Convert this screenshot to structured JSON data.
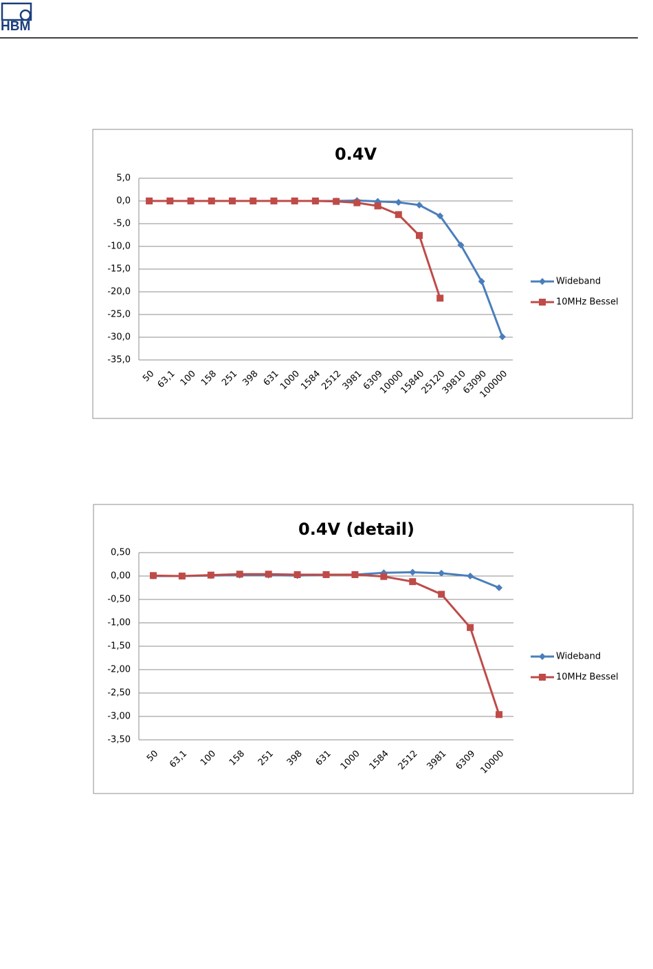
{
  "header": {
    "logo": "HBM"
  },
  "chart_data": [
    {
      "type": "line",
      "title": "0.4V",
      "categories": [
        "50",
        "63,1",
        "100",
        "158",
        "251",
        "398",
        "631",
        "1000",
        "1584",
        "2512",
        "3981",
        "6309",
        "10000",
        "15840",
        "25120",
        "39810",
        "63090",
        "100000"
      ],
      "series": [
        {
          "name": "Wideband",
          "color": "#4a7ebb",
          "marker": "diamond",
          "values": [
            0,
            0,
            0,
            0,
            0,
            0,
            0,
            0,
            0,
            0,
            0.1,
            -0.1,
            -0.3,
            -0.9,
            -3.3,
            -9.7,
            -17.7,
            -29.9
          ]
        },
        {
          "name": "10MHz Bessel",
          "color": "#be4b48",
          "marker": "square",
          "values": [
            0,
            0,
            0,
            0,
            0,
            0,
            0,
            0,
            0,
            -0.1,
            -0.4,
            -1.1,
            -3.0,
            -7.6,
            -21.4,
            null,
            null,
            null
          ]
        }
      ],
      "ylim": [
        -35,
        5
      ],
      "yticks": [
        {
          "value": -35,
          "label": "-35,0"
        },
        {
          "value": -30,
          "label": "-30,0"
        },
        {
          "value": -25,
          "label": "-25,0"
        },
        {
          "value": -20,
          "label": "-20,0"
        },
        {
          "value": -15,
          "label": "-15,0"
        },
        {
          "value": -10,
          "label": "-10,0"
        },
        {
          "value": -5,
          "label": "-5,0"
        },
        {
          "value": 0,
          "label": "0,0"
        },
        {
          "value": 5,
          "label": "5,0"
        }
      ],
      "grid": true,
      "legend": "right"
    },
    {
      "type": "line",
      "title": "0.4V (detail)",
      "categories": [
        "50",
        "63,1",
        "100",
        "158",
        "251",
        "398",
        "631",
        "1000",
        "1584",
        "2512",
        "3981",
        "6309",
        "10000"
      ],
      "series": [
        {
          "name": "Wideband",
          "color": "#4a7ebb",
          "marker": "diamond",
          "values": [
            0,
            0,
            0.01,
            0.02,
            0.02,
            0.01,
            0.03,
            0.03,
            0.07,
            0.08,
            0.06,
            0,
            -0.25
          ]
        },
        {
          "name": "10MHz Bessel",
          "color": "#be4b48",
          "marker": "square",
          "values": [
            0.01,
            0,
            0.02,
            0.04,
            0.04,
            0.03,
            0.03,
            0.03,
            -0.01,
            -0.12,
            -0.39,
            -1.1,
            -2.96
          ]
        }
      ],
      "ylim": [
        -3.5,
        0.5
      ],
      "yticks": [
        {
          "value": -3.5,
          "label": "-3,50"
        },
        {
          "value": -3,
          "label": "-3,00"
        },
        {
          "value": -2.5,
          "label": "-2,50"
        },
        {
          "value": -2,
          "label": "-2,00"
        },
        {
          "value": -1.5,
          "label": "-1,50"
        },
        {
          "value": -1,
          "label": "-1,00"
        },
        {
          "value": -0.5,
          "label": "-0,50"
        },
        {
          "value": 0,
          "label": "0,00"
        },
        {
          "value": 0.5,
          "label": "0,50"
        }
      ],
      "grid": true,
      "legend": "right"
    }
  ]
}
